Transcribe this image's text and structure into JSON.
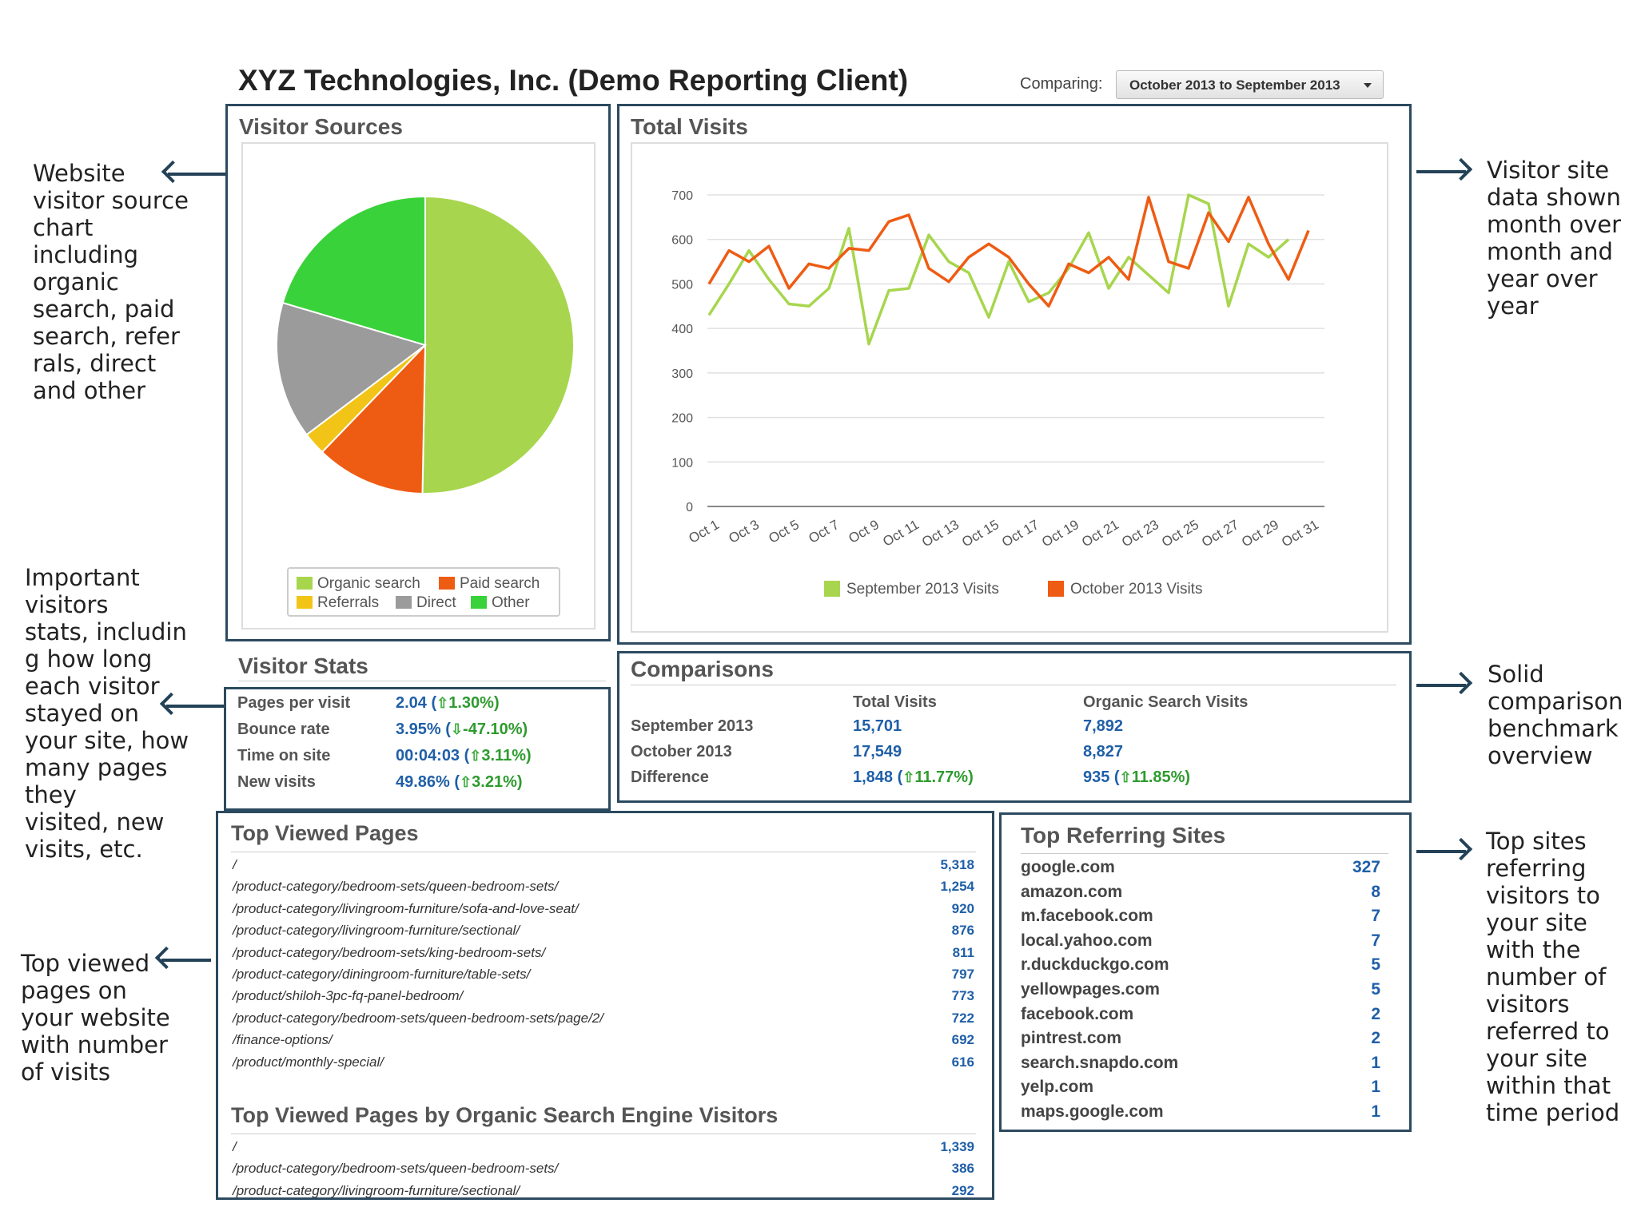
{
  "header": {
    "title": "XYZ Technologies, Inc. (Demo Reporting Client)",
    "comparing_label": "Comparing:",
    "comparing_value": "October 2013 to September 2013"
  },
  "annotations": {
    "visitor_sources": "Website\nvisitor source\nchart\nincluding\norganic\nsearch, paid\nsearch, refer\nrals, direct\nand other",
    "visitor_stats": "Important\nvisitors\nstats, includin\ng how long\neach visitor\nstayed on\nyour site, how\nmany pages\nthey\nvisited, new\nvisits, etc.",
    "top_viewed": "Top viewed\npages on\nyour website\nwith number\nof visits",
    "total_visits": "Visitor site\ndata shown\nmonth over\nmonth and\nyear over\nyear",
    "comparisons": "Solid\ncomparison\nbenchmark\noverview",
    "top_referring": "Top sites\nreferring\nvisitors to\nyour site\nwith the\nnumber of\nvisitors\nreferred to\nyour site\nwithin that\ntime period"
  },
  "visitor_sources": {
    "title": "Visitor Sources",
    "legend": [
      {
        "label": "Organic search",
        "color": "#a7d64e"
      },
      {
        "label": "Paid search",
        "color": "#ee5c14"
      },
      {
        "label": "Referrals",
        "color": "#f2c418"
      },
      {
        "label": "Direct",
        "color": "#9b9b9b"
      },
      {
        "label": "Other",
        "color": "#3ad23a"
      }
    ]
  },
  "total_visits": {
    "title": "Total Visits"
  },
  "visitor_stats": {
    "title": "Visitor Stats",
    "rows": [
      {
        "label": "Pages per visit",
        "value": "2.04 (",
        "change": "1.30%)",
        "dir": "up"
      },
      {
        "label": "Bounce rate",
        "value": "3.95% (",
        "change": "-47.10%)",
        "dir": "down"
      },
      {
        "label": "Time on site",
        "value": "00:04:03 (",
        "change": "3.11%)",
        "dir": "up"
      },
      {
        "label": "New visits",
        "value": "49.86% (",
        "change": "3.21%)",
        "dir": "up"
      }
    ]
  },
  "comparisons": {
    "title": "Comparisons",
    "col_total": "Total Visits",
    "col_organic": "Organic Search Visits",
    "rows": [
      {
        "label": "September 2013",
        "total": "15,701",
        "organic": "7,892"
      },
      {
        "label": "October 2013",
        "total": "17,549",
        "organic": "8,827"
      },
      {
        "label": "Difference",
        "total": "1,848 (",
        "total_change": "11.77%)",
        "organic": "935 (",
        "organic_change": "11.85%)"
      }
    ]
  },
  "top_viewed": {
    "title": "Top Viewed Pages",
    "rows": [
      {
        "path": "/",
        "count": "5,318"
      },
      {
        "path": "/product-category/bedroom-sets/queen-bedroom-sets/",
        "count": "1,254"
      },
      {
        "path": "/product-category/livingroom-furniture/sofa-and-love-seat/",
        "count": "920"
      },
      {
        "path": "/product-category/livingroom-furniture/sectional/",
        "count": "876"
      },
      {
        "path": "/product-category/bedroom-sets/king-bedroom-sets/",
        "count": "811"
      },
      {
        "path": "/product-category/diningroom-furniture/table-sets/",
        "count": "797"
      },
      {
        "path": "/product/shiloh-3pc-fq-panel-bedroom/",
        "count": "773"
      },
      {
        "path": "/product-category/bedroom-sets/queen-bedroom-sets/page/2/",
        "count": "722"
      },
      {
        "path": "/finance-options/",
        "count": "692"
      },
      {
        "path": "/product/monthly-special/",
        "count": "616"
      }
    ],
    "organic_title": "Top Viewed Pages by Organic Search Engine Visitors",
    "organic_rows": [
      {
        "path": "/",
        "count": "1,339"
      },
      {
        "path": "/product-category/bedroom-sets/queen-bedroom-sets/",
        "count": "386"
      },
      {
        "path": "/product-category/livingroom-furniture/sectional/",
        "count": "292"
      }
    ]
  },
  "top_referring": {
    "title": "Top Referring Sites",
    "rows": [
      {
        "site": "google.com",
        "count": "327"
      },
      {
        "site": "amazon.com",
        "count": "8"
      },
      {
        "site": "m.facebook.com",
        "count": "7"
      },
      {
        "site": "local.yahoo.com",
        "count": "7"
      },
      {
        "site": "r.duckduckgo.com",
        "count": "5"
      },
      {
        "site": "yellowpages.com",
        "count": "5"
      },
      {
        "site": "facebook.com",
        "count": "2"
      },
      {
        "site": "pintrest.com",
        "count": "2"
      },
      {
        "site": "search.snapdo.com",
        "count": "1"
      },
      {
        "site": "yelp.com",
        "count": "1"
      },
      {
        "site": "maps.google.com",
        "count": "1"
      }
    ]
  },
  "chart_data": [
    {
      "type": "pie",
      "labels": [
        "Organic search",
        "Paid search",
        "Referrals",
        "Direct",
        "Other"
      ],
      "values": [
        50.3,
        11.9,
        2.5,
        14.9,
        20.4
      ],
      "colors": [
        "#a7d64e",
        "#ee5c14",
        "#f2c418",
        "#9b9b9b",
        "#3ad23a"
      ],
      "legend": "bottom"
    },
    {
      "type": "line",
      "categories": [
        "Oct 1",
        "Oct 2",
        "Oct 3",
        "Oct 4",
        "Oct 5",
        "Oct 6",
        "Oct 7",
        "Oct 8",
        "Oct 9",
        "Oct 10",
        "Oct 11",
        "Oct 12",
        "Oct 13",
        "Oct 14",
        "Oct 15",
        "Oct 16",
        "Oct 17",
        "Oct 18",
        "Oct 19",
        "Oct 20",
        "Oct 21",
        "Oct 22",
        "Oct 23",
        "Oct 24",
        "Oct 25",
        "Oct 26",
        "Oct 27",
        "Oct 28",
        "Oct 29",
        "Oct 30",
        "Oct 31"
      ],
      "tick_labels": [
        "Oct 1",
        "Oct 3",
        "Oct 5",
        "Oct 7",
        "Oct 9",
        "Oct 11",
        "Oct 13",
        "Oct 15",
        "Oct 17",
        "Oct 19",
        "Oct 21",
        "Oct 23",
        "Oct 25",
        "Oct 27",
        "Oct 29",
        "Oct 31"
      ],
      "series": [
        {
          "name": "September 2013 Visits",
          "color": "#a7d64e",
          "values": [
            430,
            500,
            575,
            510,
            455,
            450,
            490,
            625,
            365,
            485,
            490,
            610,
            550,
            525,
            425,
            550,
            460,
            480,
            535,
            615,
            490,
            560,
            520,
            480,
            700,
            680,
            450,
            590,
            560,
            600,
            null
          ]
        },
        {
          "name": "October 2013 Visits",
          "color": "#ee5c14",
          "values": [
            500,
            575,
            550,
            585,
            490,
            545,
            535,
            580,
            575,
            640,
            655,
            535,
            505,
            560,
            590,
            560,
            500,
            450,
            545,
            525,
            560,
            510,
            695,
            550,
            535,
            660,
            595,
            695,
            590,
            510,
            620
          ]
        }
      ],
      "yticks": [
        0,
        100,
        200,
        300,
        400,
        500,
        600,
        700
      ],
      "ylim": [
        0,
        700
      ],
      "grid": true,
      "legend": "bottom"
    }
  ]
}
